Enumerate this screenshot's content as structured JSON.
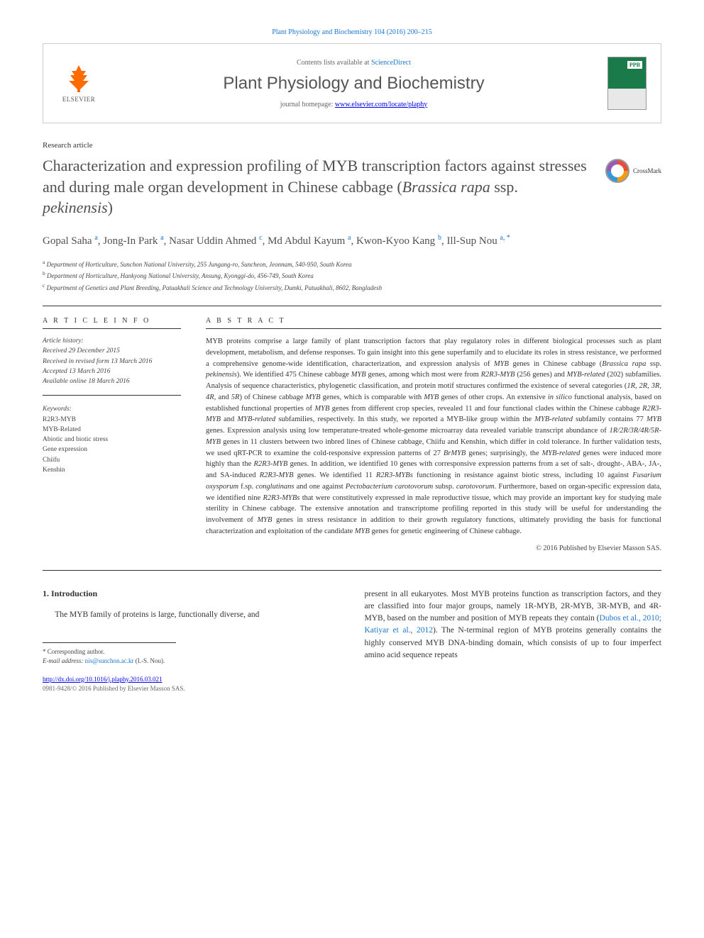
{
  "citation": "Plant Physiology and Biochemistry 104 (2016) 200–215",
  "journal_box": {
    "publisher_name": "ELSEVIER",
    "contents_prefix": "Contents lists available at ",
    "contents_link": "ScienceDirect",
    "journal_name": "Plant Physiology and Biochemistry",
    "homepage_prefix": "journal homepage: ",
    "homepage_url": "www.elsevier.com/locate/plaphy",
    "thumb_abbr": "PPB"
  },
  "article_type": "Research article",
  "title_html": "Characterization and expression profiling of MYB transcription factors against stresses and during male organ development in Chinese cabbage (<em>Brassica rapa</em> ssp. <em>pekinensis</em>)",
  "crossmark_label": "CrossMark",
  "authors_html": "Gopal Saha <sup>a</sup>, Jong-In Park <sup>a</sup>, Nasar Uddin Ahmed <sup>c</sup>, Md Abdul Kayum <sup>a</sup>, Kwon-Kyoo Kang <sup>b</sup>, Ill-Sup Nou <sup>a, *</sup>",
  "affiliations": {
    "a": "Department of Horticulture, Sunchon National University, 255 Jungang-ro, Suncheon, Jeonnam, 540-950, South Korea",
    "b": "Department of Horticulture, Hankyong National University, Ansung, Kyonggi-do, 456-749, South Korea",
    "c": "Department of Genetics and Plant Breeding, Patuakhali Science and Technology University, Dumki, Patuakhali, 8602, Bangladesh"
  },
  "info_label": "A R T I C L E   I N F O",
  "abstract_label": "A B S T R A C T",
  "history": {
    "label": "Article history:",
    "received": "Received 29 December 2015",
    "revised": "Received in revised form 13 March 2016",
    "accepted": "Accepted 13 March 2016",
    "online": "Available online 18 March 2016"
  },
  "keywords": {
    "label": "Keywords:",
    "items": [
      "R2R3-MYB",
      "MYB-Related",
      "Abiotic and biotic stress",
      "Gene expression",
      "Chiifu",
      "Kenshin"
    ]
  },
  "abstract_html": "MYB proteins comprise a large family of plant transcription factors that play regulatory roles in different biological processes such as plant development, metabolism, and defense responses. To gain insight into this gene superfamily and to elucidate its roles in stress resistance, we performed a comprehensive genome-wide identification, characterization, and expression analysis of <em>MYB</em> genes in Chinese cabbage (<em>Brassica rapa</em> ssp. <em>pekinensis</em>). We identified 475 Chinese cabbage <em>MYB</em> genes, among which most were from <em>R2R3-MYB</em> (256 genes) and <em>MYB-related</em> (202) subfamilies. Analysis of sequence characteristics, phylogenetic classification, and protein motif structures confirmed the existence of several categories (<em>1R, 2R, 3R, 4R</em>, and <em>5R</em>) of Chinese cabbage <em>MYB</em> genes, which is comparable with <em>MYB</em> genes of other crops. An extensive <em>in silico</em> functional analysis, based on established functional properties of <em>MYB</em> genes from different crop species, revealed 11 and four functional clades within the Chinese cabbage <em>R2R3-MYB</em> and <em>MYB-related</em> subfamilies, respectively. In this study, we reported a MYB-like group within the <em>MYB-related</em> subfamily contains 77 <em>MYB</em> genes. Expression analysis using low temperature-treated whole-genome microarray data revealed variable transcript abundance of <em>1R/2R/3R/4R/5R-MYB</em> genes in 11 clusters between two inbred lines of Chinese cabbage, Chiifu and Kenshin, which differ in cold tolerance. In further validation tests, we used qRT-PCR to examine the cold-responsive expression patterns of 27 <em>BrMYB</em> genes; surprisingly, the <em>MYB-related</em> genes were induced more highly than the <em>R2R3-MYB</em> genes. In addition, we identified 10 genes with corresponsive expression patterns from a set of salt-, drought-, ABA-, JA-, and SA-induced <em>R2R3-MYB</em> genes. We identified 11 <em>R2R3-MYBs</em> functioning in resistance against biotic stress, including 10 against <em>Fusarium oxysporum</em> f.sp. <em>conglutinans</em> and one against <em>Pectobacterium carotovorum</em> subsp. <em>carotovorum</em>. Furthermore, based on organ-specific expression data, we identified nine <em>R2R3-MYBs</em> that were constitutively expressed in male reproductive tissue, which may provide an important key for studying male sterility in Chinese cabbage. The extensive annotation and transcriptome profiling reported in this study will be useful for understanding the involvement of <em>MYB</em> genes in stress resistance in addition to their growth regulatory functions, ultimately providing the basis for functional characterization and exploitation of the candidate <em>MYB</em> genes for genetic engineering of Chinese cabbage.",
  "copyright": "© 2016 Published by Elsevier Masson SAS.",
  "intro": {
    "heading": "1. Introduction",
    "left": "The MYB family of proteins is large, functionally diverse, and",
    "right_html": "present in all eukaryotes. Most MYB proteins function as transcription factors, and they are classified into four major groups, namely 1R-MYB, 2R-MYB, 3R-MYB, and 4R-MYB, based on the number and position of MYB repeats they contain (<a href='#'>Dubos et al., 2010; Katiyar et al., 2012</a>). The N-terminal region of MYB proteins generally contains the highly conserved MYB DNA-binding domain, which consists of up to four imperfect amino acid sequence repeats"
  },
  "corresp": {
    "star": "* Corresponding author.",
    "email_label": "E-mail address: ",
    "email": "nis@sunchon.ac.kr",
    "email_suffix": " (I.-S. Nou)."
  },
  "footer": {
    "doi": "http://dx.doi.org/10.1016/j.plaphy.2016.03.021",
    "issn_line": "0981-9428/© 2016 Published by Elsevier Masson SAS."
  },
  "colors": {
    "link": "#1976d2",
    "elsevier_orange": "#ff6b00",
    "journal_green": "#1a7a4a",
    "text_gray": "#505050"
  }
}
